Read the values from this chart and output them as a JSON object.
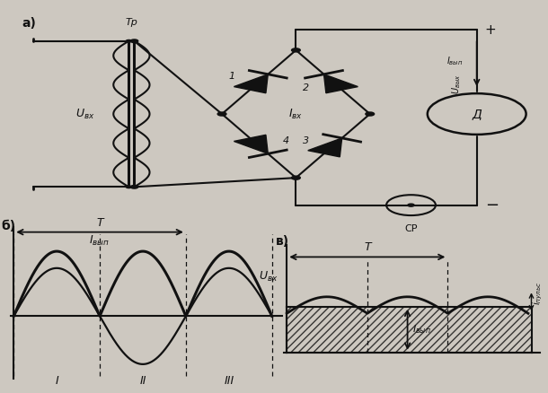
{
  "bg_color": "#cdc8c0",
  "line_color": "#111111",
  "panel_a_label": "а)",
  "panel_b_label": "б)",
  "panel_v_label": "в)",
  "Tr_label": "Тр",
  "U_vx_label": "U вх",
  "I_vx_label": "I вх",
  "I_vyp_label": "I вып",
  "U_vyh_label": "U вых",
  "D_label": "Д",
  "SR_label": "СР",
  "T_label": "T",
  "U_vx_wave_label": "U вх",
  "roman_I": "I",
  "roman_II": "II",
  "roman_III": "III",
  "i_puls_label": "i пульс",
  "I_vyp_b_label": "I вып"
}
